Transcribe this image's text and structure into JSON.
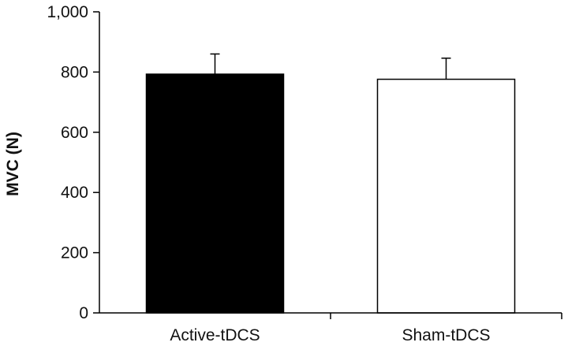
{
  "chart_data": {
    "type": "bar",
    "title": "",
    "xlabel": "",
    "ylabel": "MVC (N)",
    "categories": [
      "Active-tDCS",
      "Sham-tDCS"
    ],
    "values": [
      793,
      776
    ],
    "error_plus": [
      67,
      70
    ],
    "bar_colors": [
      "#000000",
      "#ffffff"
    ],
    "bar_edge_color": "#000000",
    "ylim": [
      0,
      1000
    ],
    "yticks": [
      0,
      200,
      400,
      600,
      800,
      1000
    ],
    "ytick_labels": [
      "0",
      "200",
      "400",
      "600",
      "800",
      "1,000"
    ],
    "grid": false,
    "legend": "none"
  }
}
